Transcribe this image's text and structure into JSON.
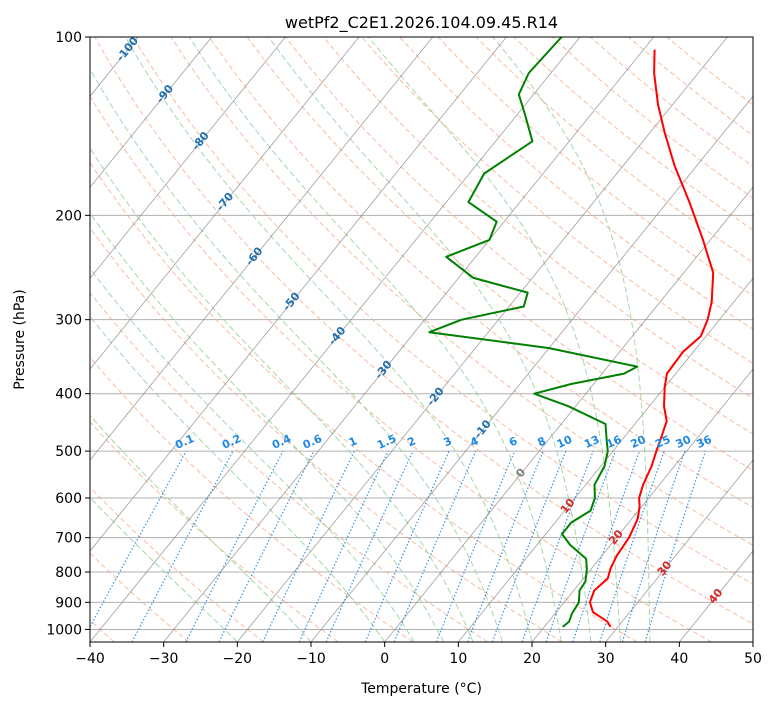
{
  "chart_data": {
    "type": "line",
    "title": "wetPf2_C2E1.2026.104.09.45.R14",
    "xlabel": "Temperature (°C)",
    "ylabel": "Pressure (hPa)",
    "xlim": [
      -40,
      50
    ],
    "ylim": [
      1050,
      100
    ],
    "x_ticks": [
      -40,
      -30,
      -20,
      -10,
      0,
      10,
      20,
      30,
      40,
      50
    ],
    "y_ticks": [
      100,
      200,
      300,
      400,
      500,
      600,
      700,
      800,
      900,
      1000
    ],
    "x_tick_labels": [
      "−40",
      "−30",
      "−20",
      "−10",
      "0",
      "10",
      "20",
      "30",
      "40",
      "50"
    ],
    "y_tick_labels": [
      "100",
      "200",
      "300",
      "400",
      "500",
      "600",
      "700",
      "800",
      "900",
      "1000"
    ],
    "series": [
      {
        "name": "temperature",
        "color": "#ff0000",
        "points": [
          [
            29.0,
            990
          ],
          [
            28.0,
            970
          ],
          [
            25.0,
            935
          ],
          [
            23.5,
            900
          ],
          [
            22.8,
            860
          ],
          [
            23.3,
            820
          ],
          [
            22.6,
            790
          ],
          [
            22.0,
            750
          ],
          [
            21.7,
            700
          ],
          [
            20.8,
            650
          ],
          [
            19.7,
            620
          ],
          [
            18.7,
            600
          ],
          [
            17.8,
            570
          ],
          [
            16.9,
            530
          ],
          [
            15.9,
            500
          ],
          [
            14.9,
            470
          ],
          [
            14.0,
            445
          ],
          [
            12.0,
            420
          ],
          [
            10.0,
            390
          ],
          [
            8.8,
            370
          ],
          [
            8.6,
            340
          ],
          [
            9.3,
            320
          ],
          [
            8.4,
            300
          ],
          [
            7.0,
            280
          ],
          [
            4.0,
            250
          ],
          [
            -1.0,
            220
          ],
          [
            -7.0,
            190
          ],
          [
            -13.0,
            165
          ],
          [
            -18.0,
            145
          ],
          [
            -22.0,
            130
          ],
          [
            -26.0,
            115
          ],
          [
            -28.5,
            105
          ]
        ]
      },
      {
        "name": "dewpoint",
        "color": "#008000",
        "points": [
          [
            22.5,
            990
          ],
          [
            22.8,
            970
          ],
          [
            22.3,
            940
          ],
          [
            22.0,
            900
          ],
          [
            20.8,
            860
          ],
          [
            20.6,
            830
          ],
          [
            19.4,
            790
          ],
          [
            18.2,
            760
          ],
          [
            14.5,
            720
          ],
          [
            12.2,
            690
          ],
          [
            12.2,
            660
          ],
          [
            13.5,
            630
          ],
          [
            12.7,
            600
          ],
          [
            11.2,
            570
          ],
          [
            10.5,
            530
          ],
          [
            9.3,
            500
          ],
          [
            8.0,
            480
          ],
          [
            6.0,
            450
          ],
          [
            -1.0,
            420
          ],
          [
            -7.0,
            400
          ],
          [
            -3.0,
            385
          ],
          [
            3.0,
            370
          ],
          [
            4.0,
            360
          ],
          [
            -10.0,
            335
          ],
          [
            -28.0,
            315
          ],
          [
            -25.0,
            300
          ],
          [
            -18.0,
            285
          ],
          [
            -19.0,
            270
          ],
          [
            -28.0,
            255
          ],
          [
            -34.0,
            235
          ],
          [
            -30.0,
            220
          ],
          [
            -31.0,
            205
          ],
          [
            -37.0,
            190
          ],
          [
            -38.0,
            170
          ],
          [
            -35.0,
            150
          ],
          [
            -39.0,
            135
          ],
          [
            -42.0,
            125
          ],
          [
            -43.0,
            115
          ],
          [
            -42.5,
            100
          ]
        ]
      }
    ],
    "isotherm_labels": [
      "-100",
      "-90",
      "-80",
      "-70",
      "-60",
      "-50",
      "-40",
      "-30",
      "-20",
      "-10",
      "0",
      "10",
      "20",
      "30",
      "40"
    ],
    "isotherm_label_positions": [
      [
        -100,
        105
      ],
      [
        -90,
        125
      ],
      [
        -80,
        150
      ],
      [
        -70,
        190
      ],
      [
        -60,
        235
      ],
      [
        -50,
        280
      ],
      [
        -40,
        320
      ],
      [
        -30,
        365
      ],
      [
        -20,
        405
      ],
      [
        -10,
        460
      ],
      [
        0,
        545
      ],
      [
        10,
        620
      ],
      [
        20,
        700
      ],
      [
        30,
        790
      ],
      [
        40,
        880
      ]
    ],
    "mixing_ratio_labels": [
      "0.1",
      "0.2",
      "0.4",
      "0.6",
      "1",
      "1.5",
      "2",
      "3",
      "4",
      "6",
      "8",
      "10",
      "13",
      "16",
      "20",
      "25",
      "30",
      "36"
    ],
    "mixing_ratio_values": [
      0.1,
      0.2,
      0.4,
      0.6,
      1,
      1.5,
      2,
      3,
      4,
      6,
      8,
      10,
      13,
      16,
      20,
      25,
      30,
      36
    ],
    "mixing_ratio_label_pressure": 500,
    "isotherm_values": [
      -140,
      -130,
      -120,
      -110,
      -100,
      -90,
      -80,
      -70,
      -60,
      -50,
      -40,
      -30,
      -20,
      -10,
      0,
      10,
      20,
      30,
      40,
      50
    ],
    "dry_adiabat_values": [
      -40,
      -30,
      -20,
      -10,
      0,
      10,
      20,
      30,
      40,
      50,
      60,
      70,
      80,
      90,
      100,
      110,
      120,
      130,
      140,
      150,
      160,
      170,
      180,
      190,
      200
    ],
    "moist_adiabat_values": [
      -20,
      -10,
      0,
      4,
      8,
      12,
      16,
      20,
      24,
      28,
      32,
      36
    ],
    "colors": {
      "temperature": "#ff0000",
      "dewpoint": "#008000",
      "isotherm": "#808080",
      "dry_adiabat": "#f4a582",
      "moist_adiabat": "#8fce8f",
      "mixing_ratio": "#1e88e5",
      "isotherm_label_cold": "#1f6fb0",
      "isotherm_label_warm": "#d62728",
      "isotherm_label_zero": "#808080"
    }
  }
}
